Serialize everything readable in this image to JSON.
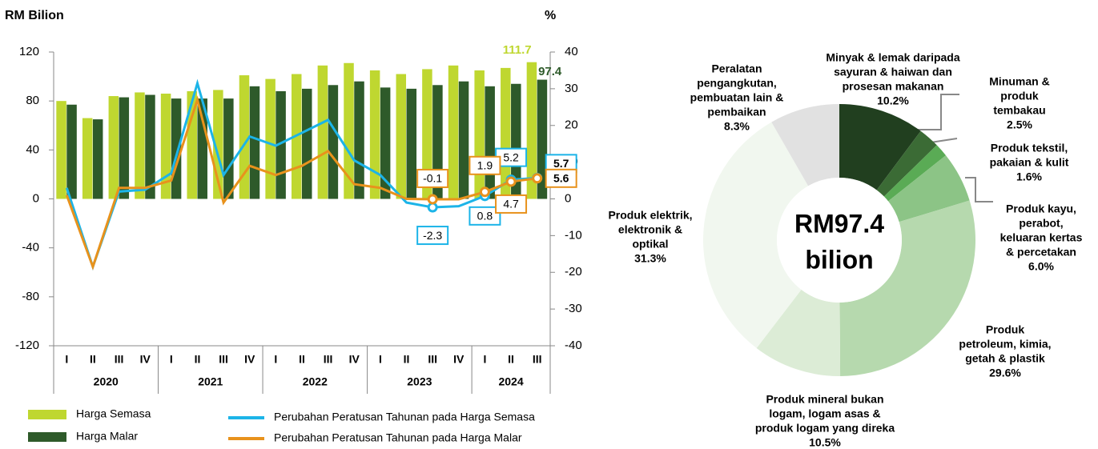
{
  "chart_data": [
    {
      "type": "combo",
      "y_label": "RM Bilion",
      "y2_label": "%",
      "groups": [
        {
          "label": "2020",
          "categories": [
            "I",
            "II",
            "III",
            "IV"
          ]
        },
        {
          "label": "2021",
          "categories": [
            "I",
            "II",
            "III",
            "IV"
          ]
        },
        {
          "label": "2022",
          "categories": [
            "I",
            "II",
            "III",
            "IV"
          ]
        },
        {
          "label": "2023",
          "categories": [
            "I",
            "II",
            "III",
            "IV"
          ]
        },
        {
          "label": "2024",
          "categories": [
            "I",
            "II",
            "III"
          ]
        }
      ],
      "ylim": [
        -120,
        120
      ],
      "yticks": [
        -120,
        -80,
        -40,
        0,
        40,
        80,
        120
      ],
      "y2lim": [
        -40,
        40
      ],
      "y2ticks": [
        -40,
        -30,
        -20,
        -10,
        0,
        10,
        20,
        30,
        40
      ],
      "series": [
        {
          "name": "Harga Semasa",
          "type": "bar",
          "color": "#bfd730",
          "values": [
            80,
            66,
            84,
            87,
            86,
            88,
            89,
            101,
            98,
            102,
            109,
            111,
            105,
            102,
            106,
            109,
            105,
            107,
            111.7
          ],
          "value_labels": [
            null,
            null,
            null,
            null,
            null,
            null,
            null,
            null,
            null,
            null,
            null,
            null,
            null,
            null,
            null,
            null,
            null,
            null,
            "111.7"
          ]
        },
        {
          "name": "Harga Malar",
          "type": "bar",
          "color": "#2e5a2a",
          "values": [
            77,
            65,
            83,
            85,
            82,
            82,
            82,
            92,
            88,
            90,
            93,
            96,
            91,
            90,
            93,
            96,
            92,
            94,
            97.4
          ],
          "value_labels": [
            null,
            null,
            null,
            null,
            null,
            null,
            null,
            null,
            null,
            null,
            null,
            null,
            null,
            null,
            null,
            null,
            null,
            null,
            "97.4"
          ]
        },
        {
          "name": "Perubahan Peratusan Tahunan pada Harga Semasa",
          "type": "line",
          "axis": "y2",
          "color": "#1cb4e8",
          "values": [
            3,
            -18.5,
            2,
            2.5,
            7,
            31.5,
            6.5,
            17,
            14.5,
            18,
            21.5,
            10.5,
            6.5,
            -1,
            -2.3,
            -2,
            0.8,
            5.2,
            5.7
          ],
          "value_labels": [
            null,
            null,
            null,
            null,
            null,
            null,
            null,
            null,
            null,
            null,
            null,
            null,
            null,
            null,
            "-2.3",
            null,
            "0.8",
            "5.2",
            "5.7"
          ]
        },
        {
          "name": "Perubahan Peratusan Tahunan pada Harga Malar",
          "type": "line",
          "axis": "y2",
          "color": "#e8921c",
          "values": [
            1,
            -18.5,
            3,
            3,
            5,
            27,
            -1,
            9,
            6.5,
            9,
            13,
            4,
            3,
            0,
            -0.1,
            -0.1,
            1.9,
            4.7,
            5.6
          ],
          "value_labels": [
            null,
            null,
            null,
            null,
            null,
            null,
            null,
            null,
            null,
            null,
            null,
            null,
            null,
            null,
            "-0.1",
            null,
            "1.9",
            "4.7",
            "5.6"
          ]
        }
      ]
    },
    {
      "type": "pie",
      "donut": true,
      "center_label": [
        "RM97.4",
        "bilion"
      ],
      "labels": [
        [
          "Minyak & lemak daripada",
          "sayuran & haiwan dan",
          "prosesan makanan"
        ],
        [
          "Minuman &",
          "produk",
          "tembakau"
        ],
        [
          "Produk tekstil,",
          "pakaian & kulit"
        ],
        [
          "Produk kayu,",
          "perabot,",
          "keluaran kertas",
          "& percetakan"
        ],
        [
          "Produk",
          "petroleum, kimia,",
          "getah & plastik"
        ],
        [
          "Produk mineral bukan",
          "logam, logam asas &",
          "produk logam yang direka"
        ],
        [
          "Produk elektrik,",
          "elektronik &",
          "optikal"
        ],
        [
          "Peralatan",
          "pengangkutan,",
          "pembuatan lain &",
          "pembaikan"
        ]
      ],
      "values": [
        10.2,
        2.5,
        1.6,
        6.0,
        29.6,
        10.5,
        31.3,
        8.3
      ],
      "value_labels": [
        "10.2%",
        "2.5%",
        "1.6%",
        "6.0%",
        "29.6%",
        "10.5%",
        "31.3%",
        "8.3%"
      ],
      "colors": [
        "#213f1f",
        "#3b6b35",
        "#5aab55",
        "#8cc486",
        "#b6d9ae",
        "#dcecd6",
        "#f1f7ef",
        "#e1e1e1"
      ]
    }
  ]
}
